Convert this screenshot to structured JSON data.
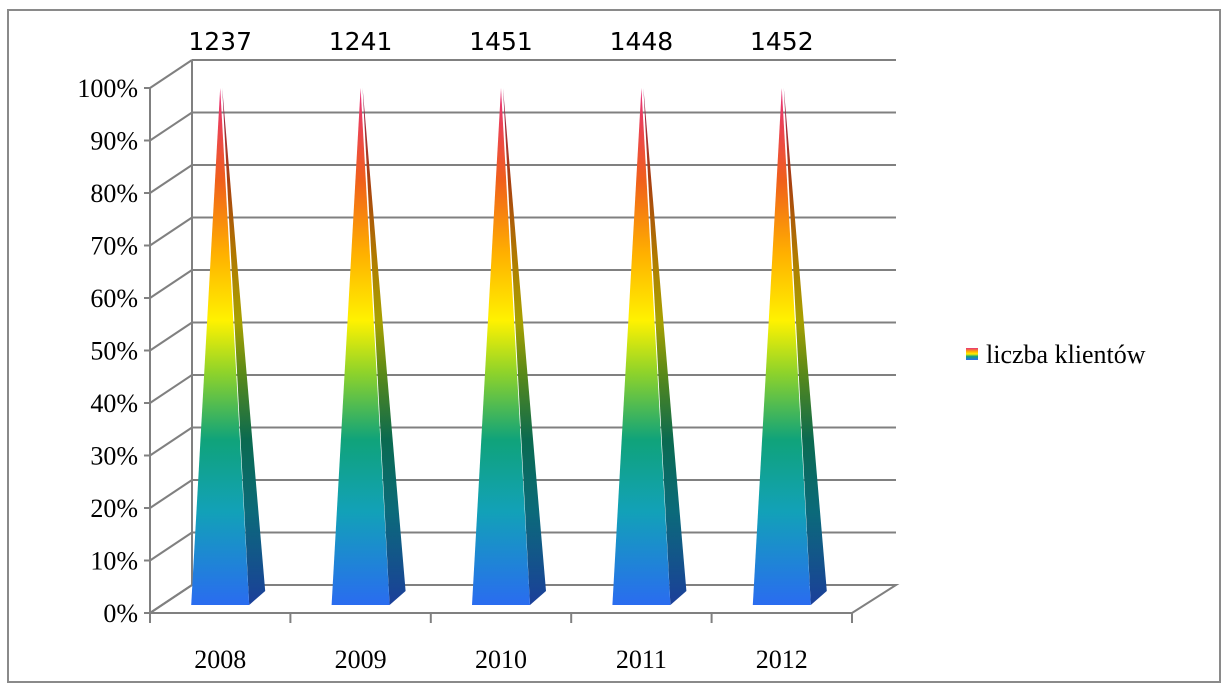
{
  "chart_data": {
    "type": "bar",
    "style": "3d-pyramid-100-percent-stacked",
    "categories": [
      "2008",
      "2009",
      "2010",
      "2011",
      "2012"
    ],
    "series": [
      {
        "name": "liczba klientów",
        "values": [
          1237,
          1241,
          1451,
          1448,
          1452
        ]
      }
    ],
    "data_labels": [
      "1237",
      "1241",
      "1451",
      "1448",
      "1452"
    ],
    "y_ticks": [
      "0%",
      "10%",
      "20%",
      "30%",
      "40%",
      "50%",
      "60%",
      "70%",
      "80%",
      "90%",
      "100%"
    ],
    "ylim": [
      0,
      100
    ],
    "y_unit": "percent",
    "grid": true,
    "legend": {
      "position": "right",
      "label": "liczba klientów"
    },
    "title": "",
    "xlabel": "",
    "ylabel": "",
    "colors": {
      "gradient": [
        "#2a6cf0",
        "#12a1b8",
        "#10a37a",
        "#8fd32a",
        "#fff200",
        "#ffb000",
        "#f0601a",
        "#e8307a"
      ],
      "shade": "#1b4aa8",
      "grid": "#808080",
      "frame": "#8a8a8a"
    }
  }
}
